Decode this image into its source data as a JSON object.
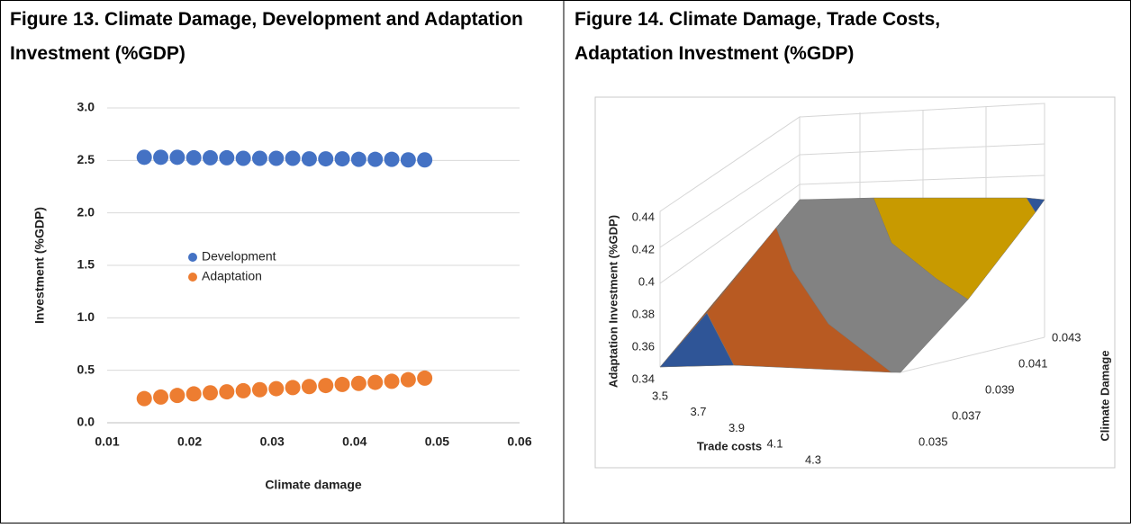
{
  "chart_data": [
    {
      "type": "scatter",
      "title": "Figure 13. Climate Damage, Development and Adaptation Investment (%GDP)",
      "xlabel": "Climate damage",
      "ylabel": "Investment (%GDP)",
      "x": [
        0.0145,
        0.0165,
        0.0185,
        0.0205,
        0.0225,
        0.0245,
        0.0265,
        0.0285,
        0.0305,
        0.0325,
        0.0345,
        0.0365,
        0.0385,
        0.0405,
        0.0425,
        0.0445,
        0.0465,
        0.0485
      ],
      "series": [
        {
          "name": "Development",
          "color": "#4472c4",
          "values": [
            2.53,
            2.53,
            2.53,
            2.525,
            2.525,
            2.525,
            2.52,
            2.52,
            2.52,
            2.52,
            2.515,
            2.515,
            2.515,
            2.51,
            2.51,
            2.51,
            2.505,
            2.505
          ]
        },
        {
          "name": "Adaptation",
          "color": "#ed7d31",
          "values": [
            0.23,
            0.245,
            0.26,
            0.275,
            0.285,
            0.295,
            0.305,
            0.315,
            0.325,
            0.335,
            0.345,
            0.355,
            0.365,
            0.375,
            0.385,
            0.395,
            0.41,
            0.425
          ]
        }
      ],
      "xlim": [
        0.01,
        0.06
      ],
      "xticks": [
        0.01,
        0.02,
        0.03,
        0.04,
        0.05,
        0.06
      ],
      "ylim": [
        0,
        3
      ],
      "yticks": [
        {
          "value": 0,
          "label": "0.0"
        },
        {
          "value": 0.5,
          "label": "0.5"
        },
        {
          "value": 1,
          "label": "1.0"
        },
        {
          "value": 1.5,
          "label": "1.5"
        },
        {
          "value": 2,
          "label": "2.0"
        },
        {
          "value": 2.5,
          "label": "2.5"
        },
        {
          "value": 3,
          "label": "3.0"
        }
      ],
      "grid": true,
      "legend": "center"
    },
    {
      "type": "surface",
      "title": "Figure 14. Climate Damage, Trade Costs, Adaptation Investment (%GDP)",
      "xlabel": "Trade costs",
      "ylabel": "Climate Damage",
      "zlabel": "Adaptation Investment (%GDP)",
      "xlim": [
        3.5,
        4.3
      ],
      "xticks": [
        3.5,
        3.7,
        3.9,
        4.1,
        4.3
      ],
      "ylim": [
        0.035,
        0.043
      ],
      "yticks": [
        0.035,
        0.037,
        0.039,
        0.041,
        0.043
      ],
      "zlim": [
        0.34,
        0.44
      ],
      "zticks": [
        0.34,
        0.36,
        0.38,
        0.4,
        0.42,
        0.44
      ]
    }
  ]
}
